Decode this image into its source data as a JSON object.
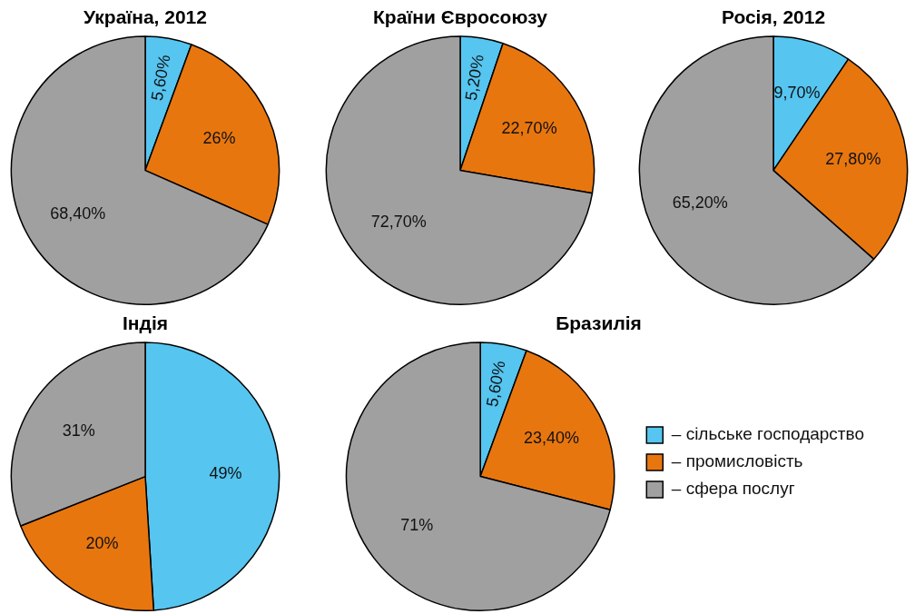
{
  "chart_data": [
    {
      "type": "pie",
      "title": "Україна, 2012",
      "categories": [
        null,
        null,
        null
      ],
      "values": [
        5.6,
        26,
        68.4
      ],
      "value_labels": [
        "5,60%",
        "26%",
        "68,40%"
      ],
      "colors": [
        "#56c5f0",
        "#e8760f",
        "#a0a0a0"
      ]
    },
    {
      "type": "pie",
      "title": "Країни Євросоюзу",
      "categories": [
        null,
        null,
        null
      ],
      "values": [
        5.2,
        22.7,
        72.7
      ],
      "value_labels": [
        "5,20%",
        "22,70%",
        "72,70%"
      ],
      "colors": [
        "#56c5f0",
        "#e8760f",
        "#a0a0a0"
      ]
    },
    {
      "type": "pie",
      "title": "Росія, 2012",
      "categories": [
        null,
        null,
        null
      ],
      "values": [
        9.7,
        27.8,
        65.2
      ],
      "value_labels": [
        "9,70%",
        "27,80%",
        "65,20%"
      ],
      "colors": [
        "#56c5f0",
        "#e8760f",
        "#a0a0a0"
      ]
    },
    {
      "type": "pie",
      "title": "Індія",
      "categories": [
        null,
        null,
        null
      ],
      "values": [
        49,
        20,
        31
      ],
      "value_labels": [
        "49%",
        "20%",
        "31%"
      ],
      "colors": [
        "#56c5f0",
        "#e8760f",
        "#a0a0a0"
      ]
    },
    {
      "type": "pie",
      "title": "Бразилія",
      "categories": [
        "– сільське господарство",
        "– промисловість",
        "– сфера послуг"
      ],
      "values": [
        5.6,
        23.4,
        71
      ],
      "value_labels": [
        "5,60%",
        "23,40%",
        "71%"
      ],
      "colors": [
        "#56c5f0",
        "#e8760f",
        "#a0a0a0"
      ],
      "legend": "right"
    }
  ]
}
